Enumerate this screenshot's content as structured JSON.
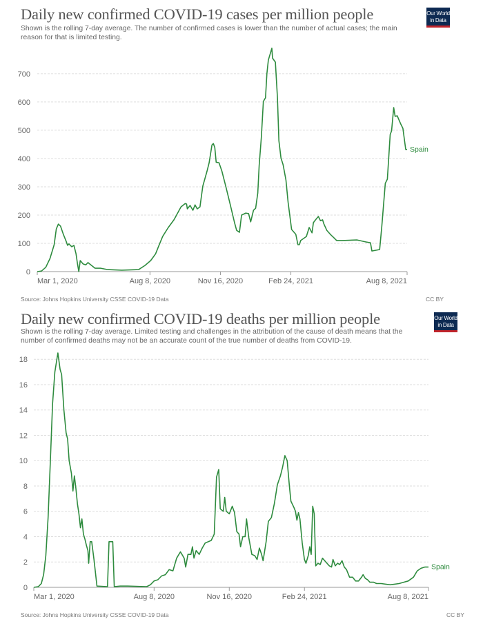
{
  "branding": {
    "logo_line1": "Our World",
    "logo_line2": "in Data",
    "logo_bg": "#0d2a52",
    "logo_accent": "#c0242b"
  },
  "chart_data": [
    {
      "type": "line",
      "title": "Daily new confirmed COVID-19 cases per million people",
      "subtitle": "Shown is the rolling 7-day average. The number of confirmed cases is lower than the number of actual cases; the main reason for that is limited testing.",
      "xlabel": "",
      "ylabel": "",
      "x_unit": "days since Mar 1, 2020",
      "xlim": [
        0,
        525
      ],
      "ylim": [
        0,
        790
      ],
      "yticks": [
        0,
        100,
        200,
        300,
        400,
        500,
        600,
        700
      ],
      "xticks": [
        {
          "day": 0,
          "label": "Mar 1, 2020"
        },
        {
          "day": 160,
          "label": "Aug 8, 2020"
        },
        {
          "day": 260,
          "label": "Nov 16, 2020"
        },
        {
          "day": 360,
          "label": "Feb 24, 2021"
        },
        {
          "day": 525,
          "label": "Aug 8, 2021"
        }
      ],
      "grid": true,
      "legend": "end-of-line label",
      "source": "Source: Johns Hopkins University CSSE COVID-19 Data",
      "license": "CC BY",
      "series": [
        {
          "name": "Spain",
          "color": "#2e8b3e",
          "points": [
            [
              0,
              0
            ],
            [
              6,
              2
            ],
            [
              12,
              15
            ],
            [
              18,
              46
            ],
            [
              24,
              95
            ],
            [
              27,
              151
            ],
            [
              30,
              168
            ],
            [
              33,
              161
            ],
            [
              37,
              132
            ],
            [
              41,
              107
            ],
            [
              43,
              93
            ],
            [
              45,
              98
            ],
            [
              49,
              88
            ],
            [
              52,
              93
            ],
            [
              55,
              63
            ],
            [
              57,
              29
            ],
            [
              59,
              0
            ],
            [
              61,
              39
            ],
            [
              65,
              27
            ],
            [
              69,
              24
            ],
            [
              72,
              32
            ],
            [
              77,
              22
            ],
            [
              82,
              12
            ],
            [
              90,
              12
            ],
            [
              100,
              7
            ],
            [
              120,
              5
            ],
            [
              144,
              7
            ],
            [
              153,
              22
            ],
            [
              161,
              39
            ],
            [
              168,
              63
            ],
            [
              172,
              88
            ],
            [
              178,
              124
            ],
            [
              186,
              156
            ],
            [
              194,
              183
            ],
            [
              204,
              229
            ],
            [
              210,
              241
            ],
            [
              212,
              239
            ],
            [
              213,
              222
            ],
            [
              217,
              234
            ],
            [
              221,
              217
            ],
            [
              224,
              236
            ],
            [
              227,
              222
            ],
            [
              231,
              229
            ],
            [
              235,
              302
            ],
            [
              241,
              355
            ],
            [
              244,
              385
            ],
            [
              248,
              448
            ],
            [
              250,
              453
            ],
            [
              252,
              439
            ],
            [
              254,
              387
            ],
            [
              258,
              385
            ],
            [
              262,
              356
            ],
            [
              268,
              298
            ],
            [
              274,
              237
            ],
            [
              280,
              173
            ],
            [
              283,
              146
            ],
            [
              287,
              139
            ],
            [
              290,
              200
            ],
            [
              296,
              207
            ],
            [
              300,
              205
            ],
            [
              303,
              176
            ],
            [
              307,
              217
            ],
            [
              310,
              224
            ],
            [
              313,
              278
            ],
            [
              315,
              375
            ],
            [
              318,
              473
            ],
            [
              321,
              602
            ],
            [
              324,
              615
            ],
            [
              326,
              700
            ],
            [
              328,
              748
            ],
            [
              333,
              790
            ],
            [
              334,
              755
            ],
            [
              338,
              741
            ],
            [
              341,
              615
            ],
            [
              343,
              463
            ],
            [
              346,
              402
            ],
            [
              349,
              378
            ],
            [
              353,
              324
            ],
            [
              356,
              246
            ],
            [
              361,
              149
            ],
            [
              367,
              132
            ],
            [
              370,
              95
            ],
            [
              372,
              95
            ],
            [
              374,
              110
            ],
            [
              378,
              117
            ],
            [
              382,
              124
            ],
            [
              386,
              156
            ],
            [
              390,
              137
            ],
            [
              392,
              173
            ],
            [
              395,
              183
            ],
            [
              399,
              195
            ],
            [
              402,
              180
            ],
            [
              405,
              183
            ],
            [
              407,
              168
            ],
            [
              411,
              146
            ],
            [
              416,
              132
            ],
            [
              421,
              120
            ],
            [
              425,
              110
            ],
            [
              433,
              110
            ],
            [
              454,
              112
            ],
            [
              466,
              105
            ],
            [
              473,
              102
            ],
            [
              475,
              73
            ],
            [
              486,
              78
            ],
            [
              489,
              156
            ],
            [
              494,
              312
            ],
            [
              497,
              327
            ],
            [
              501,
              485
            ],
            [
              503,
              498
            ],
            [
              506,
              580
            ],
            [
              508,
              549
            ],
            [
              511,
              551
            ],
            [
              516,
              522
            ],
            [
              519,
              507
            ],
            [
              523,
              432
            ],
            [
              525,
              432
            ]
          ]
        }
      ]
    },
    {
      "type": "line",
      "title": "Daily new confirmed COVID-19 deaths per million people",
      "subtitle": "Shown is the rolling 7-day average. Limited testing and challenges in the attribution of the cause of death means that the number of confirmed deaths may not be an accurate count of the true number of deaths from COVID-19.",
      "xlabel": "",
      "ylabel": "",
      "x_unit": "days since Mar 1, 2020",
      "xlim": [
        0,
        525
      ],
      "ylim": [
        0,
        18.5
      ],
      "yticks": [
        0,
        2,
        4,
        6,
        8,
        10,
        12,
        14,
        16,
        18
      ],
      "xticks": [
        {
          "day": 0,
          "label": "Mar 1, 2020"
        },
        {
          "day": 160,
          "label": "Aug 8, 2020"
        },
        {
          "day": 260,
          "label": "Nov 16, 2020"
        },
        {
          "day": 360,
          "label": "Feb 24, 2021"
        },
        {
          "day": 525,
          "label": "Aug 8, 2021"
        }
      ],
      "grid": true,
      "legend": "end-of-line label",
      "source": "Source: Johns Hopkins University CSSE COVID-19 Data",
      "license": "CC BY",
      "series": [
        {
          "name": "Spain",
          "color": "#2e8b3e",
          "points": [
            [
              0,
              0
            ],
            [
              6,
              0.05
            ],
            [
              10,
              0.3
            ],
            [
              13,
              1.0
            ],
            [
              16,
              2.5
            ],
            [
              19,
              5.5
            ],
            [
              22,
              10
            ],
            [
              25,
              14.5
            ],
            [
              28,
              17
            ],
            [
              32,
              18.5
            ],
            [
              35,
              17.2
            ],
            [
              37,
              16.8
            ],
            [
              40,
              14
            ],
            [
              43,
              12.2
            ],
            [
              45,
              11.7
            ],
            [
              47,
              10
            ],
            [
              50,
              9
            ],
            [
              52,
              7.6
            ],
            [
              54,
              8.8
            ],
            [
              56,
              7.8
            ],
            [
              58,
              6.6
            ],
            [
              60,
              5.8
            ],
            [
              62,
              4.7
            ],
            [
              64,
              5.4
            ],
            [
              66,
              4.2
            ],
            [
              68,
              3.8
            ],
            [
              70,
              3.3
            ],
            [
              72,
              2.9
            ],
            [
              73,
              1.9
            ],
            [
              75,
              3.6
            ],
            [
              77,
              3.6
            ],
            [
              80,
              2.2
            ],
            [
              84,
              0.1
            ],
            [
              98,
              0.05
            ],
            [
              100,
              3.6
            ],
            [
              105,
              3.6
            ],
            [
              107,
              0.05
            ],
            [
              115,
              0.1
            ],
            [
              125,
              0.1
            ],
            [
              150,
              0.05
            ],
            [
              155,
              0.2
            ],
            [
              160,
              0.5
            ],
            [
              165,
              0.6
            ],
            [
              170,
              0.9
            ],
            [
              175,
              1.0
            ],
            [
              180,
              1.4
            ],
            [
              185,
              1.3
            ],
            [
              190,
              2.3
            ],
            [
              195,
              2.8
            ],
            [
              200,
              2.3
            ],
            [
              202,
              1.6
            ],
            [
              205,
              2.6
            ],
            [
              209,
              2.6
            ],
            [
              211,
              3.2
            ],
            [
              213,
              2.3
            ],
            [
              216,
              2.9
            ],
            [
              220,
              2.6
            ],
            [
              224,
              3.1
            ],
            [
              228,
              3.5
            ],
            [
              236,
              3.7
            ],
            [
              240,
              4.2
            ],
            [
              243,
              8.7
            ],
            [
              246,
              9.3
            ],
            [
              248,
              6.2
            ],
            [
              252,
              6
            ],
            [
              254,
              7.1
            ],
            [
              256,
              6
            ],
            [
              260,
              5.8
            ],
            [
              264,
              6.4
            ],
            [
              267,
              5.9
            ],
            [
              270,
              4.4
            ],
            [
              273,
              4.2
            ],
            [
              275,
              3.2
            ],
            [
              278,
              4.0
            ],
            [
              281,
              4.0
            ],
            [
              283,
              5.4
            ],
            [
              286,
              3.9
            ],
            [
              290,
              2.6
            ],
            [
              294,
              2.5
            ],
            [
              297,
              2.2
            ],
            [
              300,
              3.1
            ],
            [
              303,
              2.6
            ],
            [
              305,
              2.1
            ],
            [
              309,
              3.6
            ],
            [
              312,
              5.2
            ],
            [
              316,
              5.5
            ],
            [
              320,
              6.6
            ],
            [
              324,
              8.1
            ],
            [
              328,
              8.8
            ],
            [
              331,
              9.5
            ],
            [
              334,
              10.4
            ],
            [
              337,
              10
            ],
            [
              340,
              8
            ],
            [
              342,
              6.8
            ],
            [
              346,
              6.3
            ],
            [
              348,
              6
            ],
            [
              350,
              5.3
            ],
            [
              352,
              5.9
            ],
            [
              354,
              5.4
            ],
            [
              357,
              3.5
            ],
            [
              360,
              2.2
            ],
            [
              362,
              1.9
            ],
            [
              365,
              2.5
            ],
            [
              367,
              3.2
            ],
            [
              369,
              2.6
            ],
            [
              371,
              6.4
            ],
            [
              373,
              5.8
            ],
            [
              375,
              1.7
            ],
            [
              378,
              1.9
            ],
            [
              381,
              1.8
            ],
            [
              384,
              2.3
            ],
            [
              387,
              2.1
            ],
            [
              390,
              1.9
            ],
            [
              393,
              1.7
            ],
            [
              396,
              1.6
            ],
            [
              398,
              2.2
            ],
            [
              401,
              1.7
            ],
            [
              404,
              1.9
            ],
            [
              407,
              1.8
            ],
            [
              410,
              2.1
            ],
            [
              413,
              1.6
            ],
            [
              416,
              1.4
            ],
            [
              420,
              0.8
            ],
            [
              424,
              0.8
            ],
            [
              428,
              0.5
            ],
            [
              432,
              0.5
            ],
            [
              436,
              0.8
            ],
            [
              438,
              1.0
            ],
            [
              441,
              0.7
            ],
            [
              444,
              0.6
            ],
            [
              447,
              0.4
            ],
            [
              452,
              0.4
            ],
            [
              456,
              0.3
            ],
            [
              462,
              0.3
            ],
            [
              468,
              0.25
            ],
            [
              474,
              0.2
            ],
            [
              480,
              0.25
            ],
            [
              486,
              0.3
            ],
            [
              492,
              0.4
            ],
            [
              498,
              0.5
            ],
            [
              505,
              0.8
            ],
            [
              510,
              1.3
            ],
            [
              515,
              1.5
            ],
            [
              520,
              1.6
            ],
            [
              525,
              1.6
            ]
          ]
        }
      ]
    }
  ]
}
